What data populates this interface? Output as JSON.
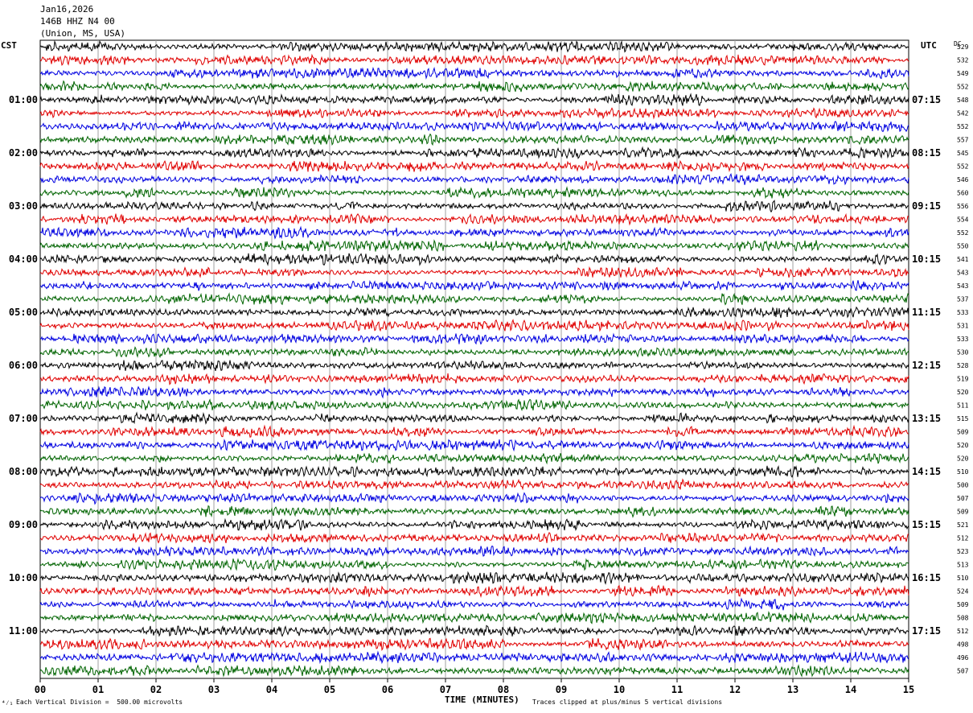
{
  "header": {
    "date": "Jan16,2026",
    "station": "146B HHZ N4 00",
    "location": "(Union, MS, USA)"
  },
  "left_zone": "CST",
  "right_zone": "UTC",
  "dc_label": "DC",
  "footer": {
    "scale_note": "Each Vertical Division =  500.00 microvolts",
    "clip_note": "Traces clipped at plus/minus 5 vertical divisions",
    "corner_mark": "⁴⁄₁"
  },
  "colors": {
    "trace_cycle": [
      "#000000",
      "#e00000",
      "#0000e0",
      "#006400"
    ],
    "grid": "#a0a0a0"
  },
  "chart_data": {
    "type": "line",
    "title": "",
    "xlabel": "TIME (MINUTES)",
    "ylabel": "",
    "xlim": [
      0,
      15
    ],
    "x_ticks": [
      "00",
      "01",
      "02",
      "03",
      "04",
      "05",
      "06",
      "07",
      "08",
      "09",
      "10",
      "11",
      "12",
      "13",
      "14",
      "15"
    ],
    "left_hour_labels": [
      "01:00",
      "02:00",
      "03:00",
      "04:00",
      "05:00",
      "06:00",
      "07:00",
      "08:00",
      "09:00",
      "10:00",
      "11:00"
    ],
    "right_hour_labels": [
      "07:15",
      "08:15",
      "09:15",
      "10:15",
      "11:15",
      "12:15",
      "13:15",
      "14:15",
      "15:15",
      "16:15",
      "17:15"
    ],
    "trace_count": 48,
    "minutes_per_trace": 15,
    "dc_offsets": [
      529,
      532,
      549,
      552,
      548,
      542,
      552,
      557,
      545,
      552,
      546,
      560,
      556,
      554,
      552,
      550,
      541,
      543,
      543,
      537,
      533,
      531,
      533,
      530,
      528,
      519,
      520,
      511,
      515,
      509,
      520,
      520,
      510,
      500,
      507,
      509,
      521,
      512,
      523,
      513,
      510,
      524,
      509,
      508,
      512,
      498,
      496,
      507
    ],
    "grid": true
  }
}
